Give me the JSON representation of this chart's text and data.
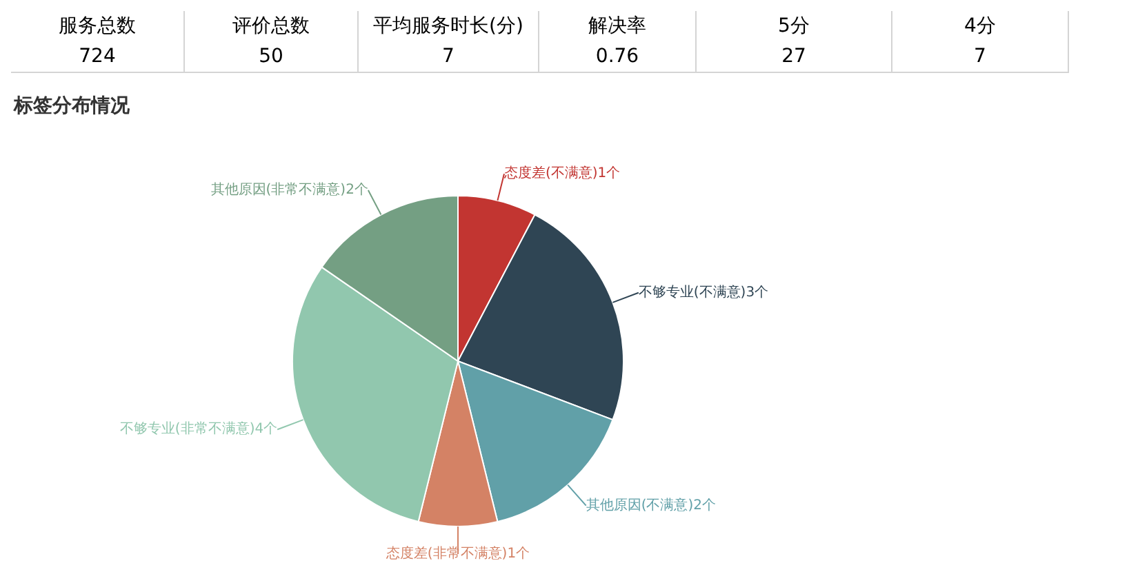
{
  "chart_data": [
    {
      "type": "other",
      "categories": [
        "服务总数",
        "评价总数",
        "平均服务时长(分)",
        "解决率",
        "5分",
        "4分"
      ],
      "values": [
        724,
        50,
        7,
        0.76,
        27,
        7
      ],
      "data_labels": true
    },
    {
      "type": "pie",
      "title": "标签分布情况",
      "categories": [
        "态度差(不满意)",
        "不够专业(不满意)",
        "其他原因(不满意)",
        "态度差(非常不满意)",
        "不够专业(非常不满意)",
        "其他原因(非常不满意)"
      ],
      "values": [
        1,
        3,
        2,
        1,
        4,
        2
      ],
      "value_labels": [
        "1个",
        "3个",
        "2个",
        "1个",
        "4个",
        "2个"
      ],
      "colors": [
        "#c23531",
        "#2f4554",
        "#61a0a8",
        "#d48265",
        "#91c7ae",
        "#749f83"
      ]
    }
  ]
}
